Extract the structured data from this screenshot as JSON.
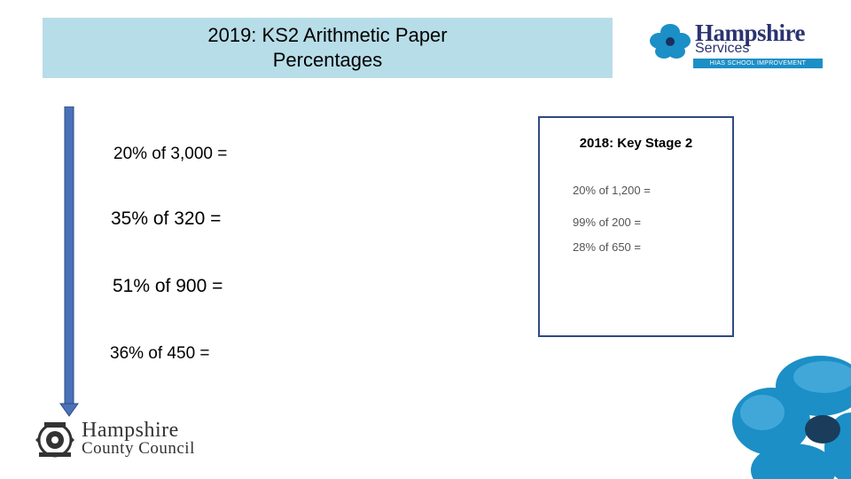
{
  "header": {
    "title_line1": "2019: KS2 Arithmetic Paper",
    "title_line2": "Percentages",
    "background_color": "#b7dde8"
  },
  "logo_top": {
    "brand": "Hampshire",
    "sub": "Services",
    "strap": "HIAS SCHOOL IMPROVEMENT",
    "icon": "flower-icon"
  },
  "questions": [
    "20% of 3,000 =",
    "35% of 320 =",
    "51% of 900 =",
    "36% of 450 ="
  ],
  "reference": {
    "title": "2018: Key Stage 2",
    "items": [
      "20% of 1,200 =",
      "99% of 200 =",
      "28% of 650 ="
    ],
    "border_color": "#2f4a82"
  },
  "logo_bottom": {
    "line1": "Hampshire",
    "line2": "County Council",
    "icon": "crest-icon"
  },
  "colors": {
    "arrow": "#4a72b8",
    "brand_blue": "#1b8fc6"
  }
}
